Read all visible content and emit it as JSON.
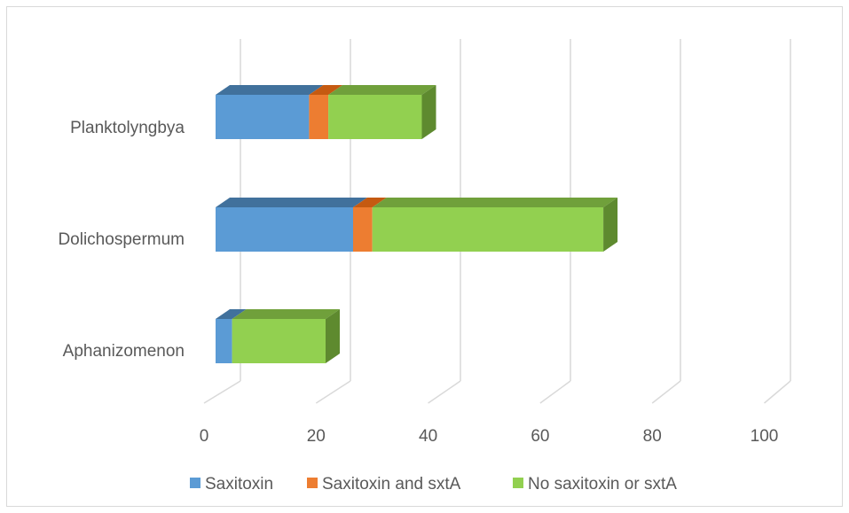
{
  "chart_data": {
    "type": "bar",
    "orientation": "horizontal",
    "stacked": true,
    "style": "3d",
    "categories": [
      "Planktolyngbya",
      "Dolichospermum",
      "Aphanizomenon"
    ],
    "series": [
      {
        "name": "Saxitoxin",
        "color": "#5b9bd5",
        "top_color": "#41719c",
        "side_color": "#41719c",
        "values": [
          17,
          25,
          3
        ]
      },
      {
        "name": "Saxitoxin and sxtA",
        "color": "#ed7d31",
        "top_color": "#c55a11",
        "side_color": "#c55a11",
        "values": [
          3.5,
          3.5,
          0
        ]
      },
      {
        "name": "No saxitoxin or sxtA",
        "color": "#92d050",
        "top_color": "#70a03b",
        "side_color": "#5e8a2f",
        "values": [
          17,
          42,
          17
        ]
      }
    ],
    "xlim": [
      0,
      100
    ],
    "x_ticks": [
      "0",
      "20",
      "40",
      "60",
      "80",
      "100"
    ],
    "grid": true,
    "legend_position": "bottom",
    "title": "",
    "xlabel": "",
    "ylabel": ""
  }
}
